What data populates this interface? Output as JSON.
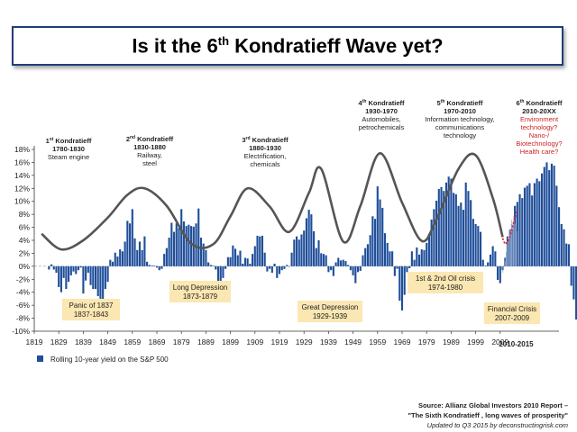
{
  "title": {
    "prefix": "Is it the 6",
    "sup": "th",
    "suffix": " Kondratieff Wave yet?"
  },
  "chart_data": {
    "type": "bar",
    "ylim": [
      -10,
      18
    ],
    "y_ticks": [
      "18%",
      "16%",
      "14%",
      "12%",
      "10%",
      "8%",
      "6%",
      "4%",
      "2%",
      "0%",
      "-2%",
      "-4%",
      "-6%",
      "-8%",
      "-10%"
    ],
    "y_tick_values": [
      18,
      16,
      14,
      12,
      10,
      8,
      6,
      4,
      2,
      0,
      -2,
      -4,
      -6,
      -8,
      -10
    ],
    "x_ticks": [
      "1819",
      "1829",
      "1839",
      "1849",
      "1859",
      "1869",
      "1879",
      "1889",
      "1899",
      "1909",
      "1919",
      "1929",
      "1939",
      "1949",
      "1959",
      "1969",
      "1979",
      "1989",
      "1999",
      "2009"
    ],
    "x_tick_values": [
      1819,
      1829,
      1839,
      1849,
      1859,
      1869,
      1879,
      1889,
      1899,
      1909,
      1919,
      1929,
      1939,
      1949,
      1959,
      1969,
      1979,
      1989,
      1999,
      2009
    ],
    "x_extra_label": "2010-2015",
    "legend": "Rolling 10-year yield on the S&P 500",
    "colors": {
      "bar": "#1f4e9a",
      "forecast": "#7f9bc6",
      "wave": "#555555",
      "projection": "#e0202a",
      "label_box": "#fbe7b2",
      "question": "#cc2222"
    },
    "series": [
      {
        "years_start": 1825,
        "values": [
          -0.5,
          0.3,
          -0.5,
          -1,
          -3.2,
          -4,
          -1.8,
          -3.5,
          -2.4,
          -1.4,
          -0.8,
          -1.2,
          -0.6,
          -0.2,
          -4.2,
          -2.2,
          -1,
          -2.9,
          -3.5,
          -3.5,
          -4.6,
          -6,
          -5.3,
          -3.5,
          -2.4,
          1,
          0.7,
          2.1,
          1.5,
          2.6,
          2.3,
          3.8,
          7,
          6.6,
          8.8,
          4.3,
          2.5,
          3.8,
          2.5,
          4.6,
          0.7,
          0.2,
          0.1,
          0.1,
          -0.2,
          -0.6,
          -0.4,
          1.9,
          2.8,
          4.4,
          6.7,
          5.3,
          6.6,
          5.9,
          8.8,
          6.9,
          6.2,
          6.4,
          6.2,
          6.1,
          6.6,
          8.9,
          4.4,
          3.5,
          2.5,
          0.6,
          0.2,
          0.1,
          -0.5,
          -2.7,
          -2.9,
          -1.8,
          -0.4,
          1.4,
          1.4,
          3.2,
          2.7,
          1.7,
          2.4,
          0.4,
          1.3,
          1.2,
          0.4,
          1.9,
          3.1,
          4.7,
          4.6,
          4.7,
          2.1,
          -0.8,
          -0.4,
          -1,
          0.4,
          -1.8,
          -1.2,
          -0.6,
          -0.4,
          0.2,
          0,
          2.1,
          4.1,
          4.6,
          4.1,
          4.9,
          5.5,
          7.4,
          8.7,
          8,
          5.4,
          2.8,
          4,
          2,
          1.9,
          1.7,
          -0.9,
          -0.6,
          -1.5,
          0.6,
          1.3,
          0.9,
          1,
          0.8,
          0.2,
          -0.6,
          -1.4,
          -2.6,
          -0.9,
          -0.7,
          1.7,
          2.8,
          3.4,
          4.8,
          7.7,
          7.3,
          12.3,
          10.3,
          9,
          5.1,
          3.6,
          2.3,
          2.3,
          -1.5,
          -0.4,
          -5.3,
          -6.8,
          -4.4,
          -0.9,
          -0.3,
          2.3,
          1,
          2.9,
          1.8,
          2.6,
          2.5,
          3.6,
          5,
          7.2,
          8.8,
          10.1,
          11.9,
          12.2,
          11.6,
          12.9,
          13.8,
          13.5,
          11.3,
          11.1,
          9.3,
          9.8,
          8.7,
          12.9,
          11.6,
          10.2,
          7.3,
          6.5,
          6.2,
          5.3,
          1,
          0.1,
          0.6,
          1.8,
          3.1,
          2.3,
          -2.1,
          -2.6,
          -0.6,
          1.3,
          4.6,
          5.6,
          5.7,
          9.3,
          9.9,
          11.1,
          10.5,
          12.1,
          12.4,
          12.8,
          10.9,
          12.8,
          13.5,
          13.1,
          14.3,
          15.3,
          16,
          14.8,
          15.8,
          15.5,
          12.4,
          9.1,
          6.5,
          5.7,
          3.5,
          3.4,
          -3,
          -5.1,
          -8.2
        ]
      },
      {
        "name": "2010-2015",
        "years_start": 2010,
        "values": [
          -1,
          -0.2,
          0.5,
          1.2,
          0.8,
          2.2,
          3.4,
          3.8,
          4.6,
          3.8,
          5.1,
          5.8,
          5.4,
          6.5,
          7.2,
          6.4,
          6.9,
          7.8,
          7.2,
          6.6,
          5.9,
          6.2,
          5.4
        ]
      }
    ],
    "wave": {
      "x": [
        1822,
        1830,
        1839,
        1849,
        1857,
        1864,
        1873,
        1883,
        1892,
        1899,
        1906,
        1915,
        1923,
        1931,
        1936,
        1945,
        1952,
        1960,
        1969,
        1977,
        1983,
        1992,
        1999,
        2006,
        2010
      ],
      "y": [
        5,
        2.6,
        4,
        7.5,
        11,
        12,
        9.3,
        3.5,
        3.4,
        7.7,
        12,
        9.2,
        5.3,
        11.3,
        15,
        3.8,
        9.3,
        17.4,
        9.8,
        3.9,
        7.2,
        15,
        17.1,
        10.5,
        4.5
      ]
    },
    "projection": {
      "x": [
        2010,
        2011,
        2012,
        2013,
        2014,
        2015,
        2016
      ],
      "y": [
        4.3,
        3.4,
        3.7,
        4.6,
        6,
        7.4,
        8.7
      ]
    },
    "waves": [
      {
        "n": "1",
        "sup": "st",
        "name": " Kondratieff",
        "years": "1780-1830",
        "desc": [
          "Steam engine"
        ]
      },
      {
        "n": "2",
        "sup": "nd",
        "name": " Kondratieff",
        "years": "1830-1880",
        "desc": [
          "Railway,",
          "steel"
        ]
      },
      {
        "n": "3",
        "sup": "rd",
        "name": " Kondratieff",
        "years": "1880-1930",
        "desc": [
          "Electrification,",
          "chemicals"
        ]
      },
      {
        "n": "4",
        "sup": "th",
        "name": " Kondratieff",
        "years": "1930-1970",
        "desc": [
          "Automobiles,",
          "petrochemicals"
        ]
      },
      {
        "n": "5",
        "sup": "th",
        "name": " Kondratieff",
        "years": "1970-2010",
        "desc": [
          "Information technology,",
          "communications",
          "technology"
        ]
      },
      {
        "n": "6",
        "sup": "th",
        "name": " Kondratieff",
        "years": "2010-20XX",
        "desc": [
          "Environment",
          "technology?",
          "Nano-/",
          "Biotechnology?",
          "Health care?"
        ]
      }
    ],
    "crises": [
      {
        "lines": [
          "Panic of 1837",
          "1837-1843"
        ]
      },
      {
        "lines": [
          "Long Depression",
          "1873-1879"
        ]
      },
      {
        "lines": [
          "Great Depression",
          "1929-1939"
        ]
      },
      {
        "lines": [
          "1st & 2nd Oil crisis",
          "1974-1980"
        ]
      },
      {
        "lines": [
          "Financial Crisis",
          "2007-2009"
        ]
      }
    ]
  },
  "source": {
    "line1": "Source: Allianz Global Investors 2010 Report –",
    "line2": "\"The Sixth Kondratieff , long waves of prosperity\"",
    "line3": "Updated to  Q3 2015 by deconstructingrisk.com"
  }
}
